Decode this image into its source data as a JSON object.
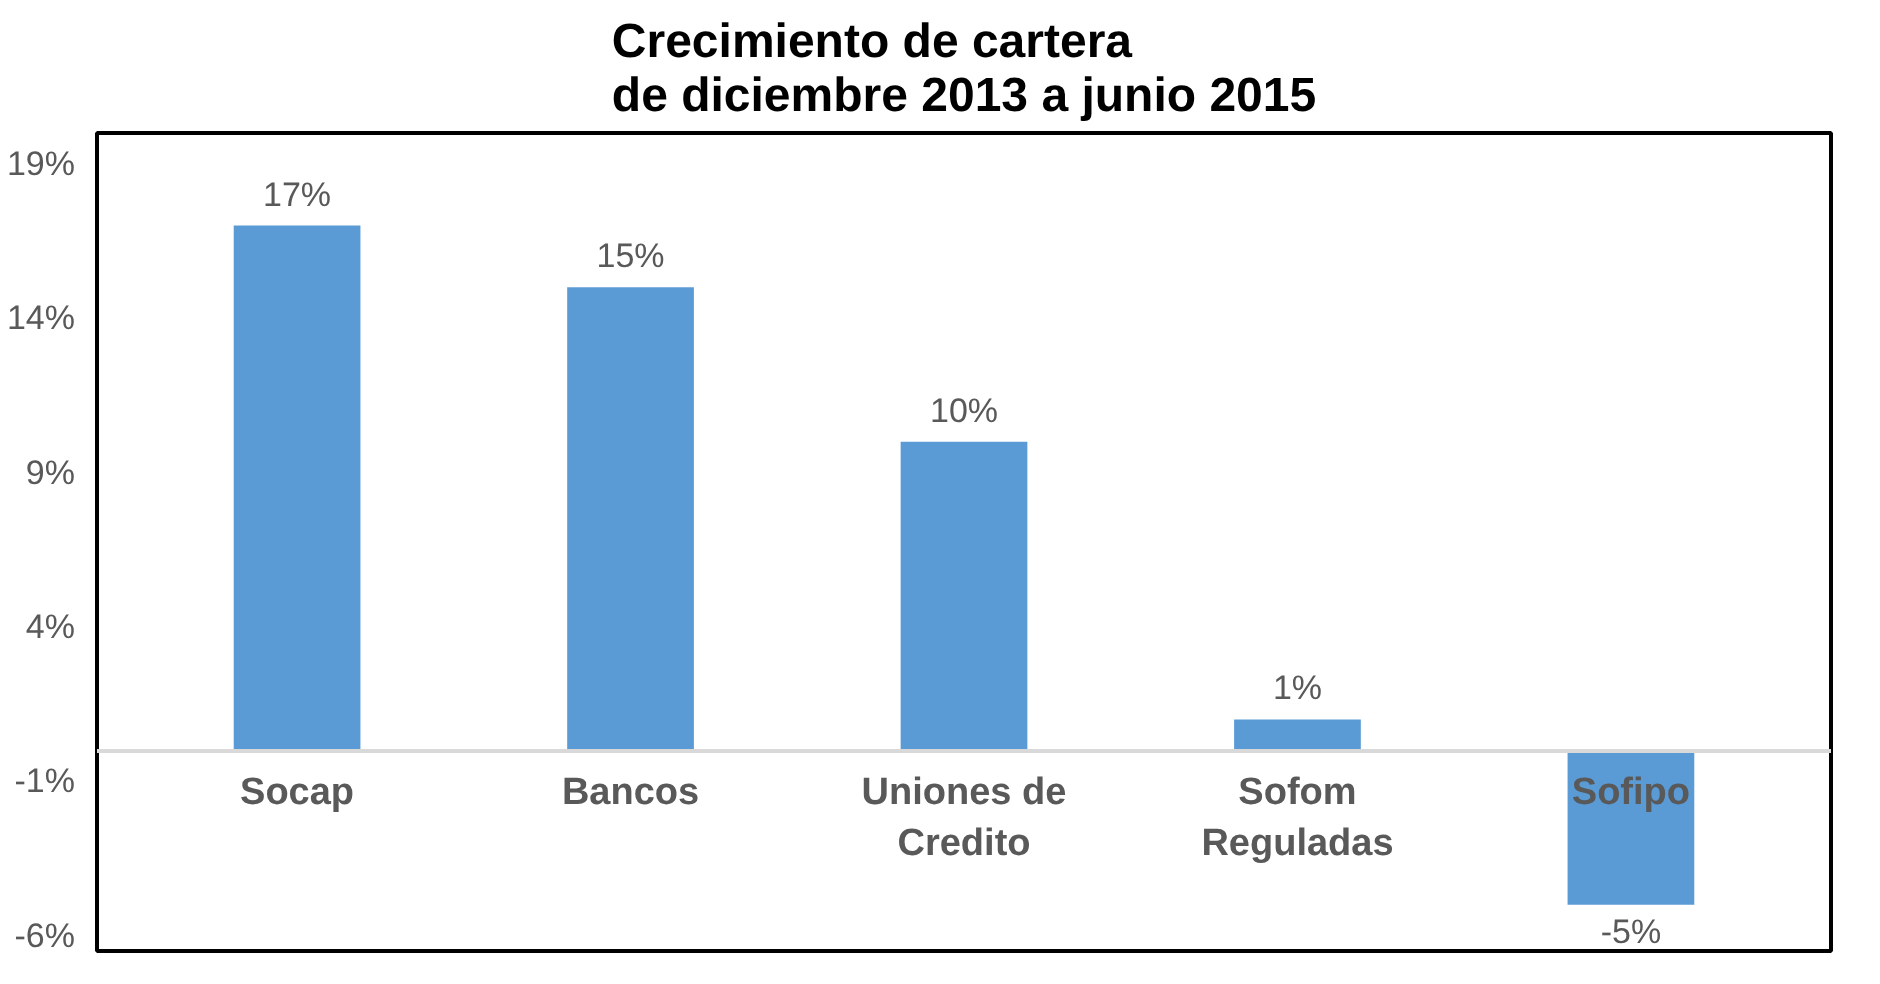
{
  "chart_data": {
    "type": "bar",
    "title": "Crecimiento de cartera\nde diciembre 2013 a junio 2015",
    "categories": [
      "Socap",
      "Bancos",
      "Uniones de Credito",
      "Sofom Reguladas",
      "Sofipo"
    ],
    "values": [
      17,
      15,
      10,
      1,
      -5
    ],
    "value_labels": [
      "17%",
      "15%",
      "10%",
      "1%",
      "-5%"
    ],
    "color": "#5b9bd5",
    "grid": false,
    "ylim": [
      -6.5,
      20
    ],
    "yticks": [
      {
        "value": -6,
        "label": "-6%"
      },
      {
        "value": -1,
        "label": "-1%"
      },
      {
        "value": 4,
        "label": "4%"
      },
      {
        "value": 9,
        "label": "9%"
      },
      {
        "value": 14,
        "label": "14%"
      },
      {
        "value": 19,
        "label": "19%"
      }
    ]
  }
}
